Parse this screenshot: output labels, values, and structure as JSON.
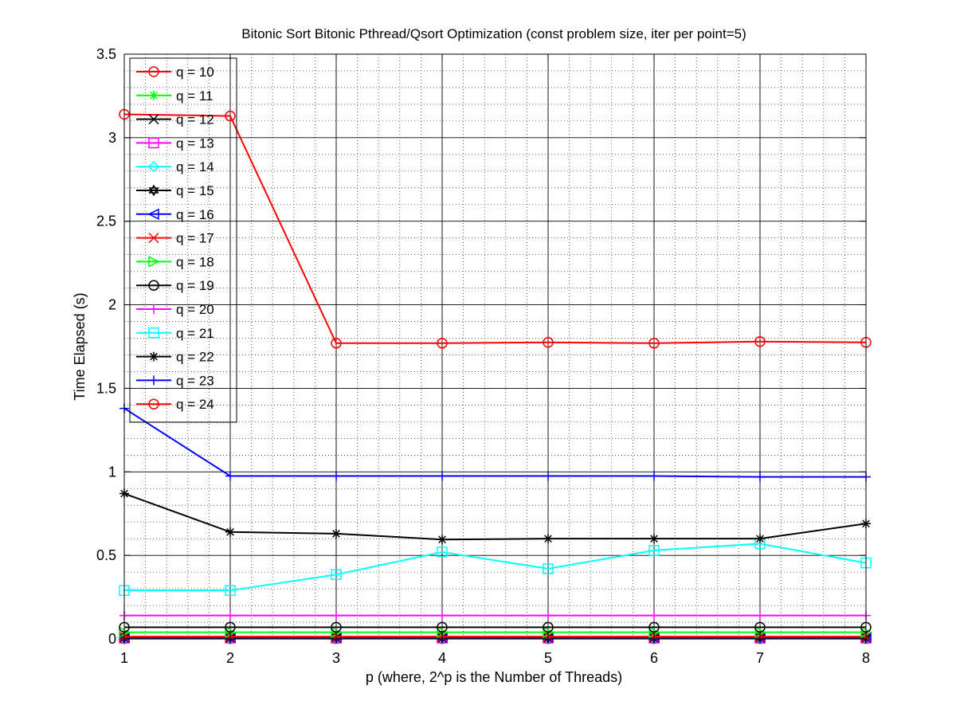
{
  "chart_data": {
    "type": "line",
    "title": "Bitonic Sort Bitonic Pthread/Qsort Optimization (const problem size, iter per point=5)",
    "xlabel": "p (where, 2^p is the Number of Threads)",
    "ylabel": "Time Elapsed (s)",
    "x": [
      1,
      2,
      3,
      4,
      5,
      6,
      7,
      8
    ],
    "xlim": [
      1,
      8
    ],
    "ylim": [
      0,
      3.5
    ],
    "xticks": [
      "1",
      "2",
      "3",
      "4",
      "5",
      "6",
      "7",
      "8"
    ],
    "yticks": [
      "0",
      "0.5",
      "1",
      "1.5",
      "2",
      "2.5",
      "3",
      "3.5"
    ],
    "grid": true,
    "legend_position": "top-left",
    "series": [
      {
        "name": "q = 10",
        "color": "#ff0000",
        "marker": "circle",
        "values": [
          0.002,
          0.002,
          0.002,
          0.002,
          0.002,
          0.002,
          0.002,
          0.002
        ]
      },
      {
        "name": "q = 11",
        "color": "#00ff00",
        "marker": "asterisk",
        "values": [
          0.003,
          0.003,
          0.003,
          0.003,
          0.003,
          0.003,
          0.003,
          0.003
        ]
      },
      {
        "name": "q = 12",
        "color": "#000000",
        "marker": "x",
        "values": [
          0.004,
          0.004,
          0.004,
          0.004,
          0.004,
          0.004,
          0.004,
          0.004
        ]
      },
      {
        "name": "q = 13",
        "color": "#ff00ff",
        "marker": "square",
        "values": [
          0.005,
          0.005,
          0.005,
          0.005,
          0.005,
          0.005,
          0.005,
          0.005
        ]
      },
      {
        "name": "q = 14",
        "color": "#00ffff",
        "marker": "diamond",
        "values": [
          0.006,
          0.006,
          0.006,
          0.006,
          0.006,
          0.006,
          0.006,
          0.006
        ]
      },
      {
        "name": "q = 15",
        "color": "#000000",
        "marker": "hexagram",
        "values": [
          0.008,
          0.008,
          0.008,
          0.008,
          0.008,
          0.008,
          0.008,
          0.008
        ]
      },
      {
        "name": "q = 16",
        "color": "#0000ff",
        "marker": "tri-left",
        "values": [
          0.01,
          0.01,
          0.01,
          0.01,
          0.01,
          0.01,
          0.01,
          0.01
        ]
      },
      {
        "name": "q = 17",
        "color": "#ff0000",
        "marker": "x",
        "values": [
          0.014,
          0.014,
          0.014,
          0.014,
          0.014,
          0.014,
          0.014,
          0.014
        ]
      },
      {
        "name": "q = 18",
        "color": "#00ff00",
        "marker": "tri-right",
        "values": [
          0.04,
          0.04,
          0.04,
          0.04,
          0.04,
          0.04,
          0.04,
          0.04
        ]
      },
      {
        "name": "q = 19",
        "color": "#000000",
        "marker": "circle",
        "values": [
          0.07,
          0.07,
          0.07,
          0.07,
          0.07,
          0.07,
          0.07,
          0.07
        ]
      },
      {
        "name": "q = 20",
        "color": "#ff00ff",
        "marker": "plus",
        "values": [
          0.14,
          0.14,
          0.14,
          0.14,
          0.14,
          0.14,
          0.14,
          0.14
        ]
      },
      {
        "name": "q = 21",
        "color": "#00ffff",
        "marker": "square",
        "values": [
          0.29,
          0.29,
          0.385,
          0.52,
          0.42,
          0.53,
          0.57,
          0.455
        ]
      },
      {
        "name": "q = 22",
        "color": "#000000",
        "marker": "asterisk",
        "values": [
          0.87,
          0.64,
          0.63,
          0.595,
          0.6,
          0.6,
          0.6,
          0.69
        ]
      },
      {
        "name": "q = 23",
        "color": "#0000ff",
        "marker": "plus",
        "values": [
          1.38,
          0.975,
          0.975,
          0.975,
          0.975,
          0.975,
          0.97,
          0.97
        ]
      },
      {
        "name": "q = 24",
        "color": "#ff0000",
        "marker": "circle",
        "values": [
          3.14,
          3.13,
          1.77,
          1.77,
          1.775,
          1.77,
          1.78,
          1.775
        ]
      }
    ]
  }
}
